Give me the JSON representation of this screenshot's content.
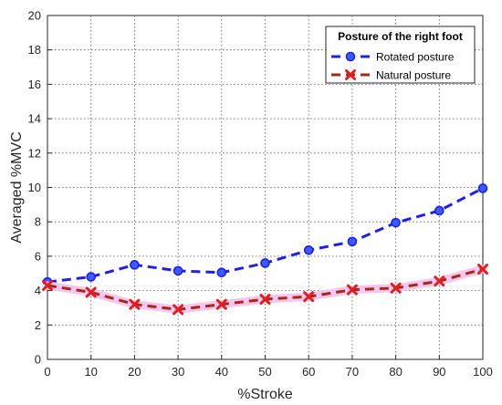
{
  "chart_data": {
    "type": "line",
    "x": [
      0,
      10,
      20,
      30,
      40,
      50,
      60,
      70,
      80,
      90,
      100
    ],
    "series": [
      {
        "name": "Rotated posture",
        "values": [
          4.5,
          4.8,
          5.5,
          5.15,
          5.05,
          5.6,
          6.35,
          6.85,
          7.95,
          8.65,
          9.95
        ],
        "color": "#1f1fe6",
        "marker": "circle",
        "line_style": "dashed"
      },
      {
        "name": "Natural posture",
        "values": [
          4.3,
          3.9,
          3.2,
          2.9,
          3.2,
          3.5,
          3.65,
          4.05,
          4.15,
          4.55,
          5.25
        ],
        "color": "#a52a1a",
        "marker": "x",
        "marker_color": "#e02020",
        "line_style": "dashed"
      }
    ],
    "xlabel": "%Stroke",
    "ylabel": "Averaged %MVC",
    "xlim": [
      0,
      100
    ],
    "ylim": [
      0,
      20
    ],
    "xticks": [
      0,
      10,
      20,
      30,
      40,
      50,
      60,
      70,
      80,
      90,
      100
    ],
    "yticks": [
      0,
      2,
      4,
      6,
      8,
      10,
      12,
      14,
      16,
      18,
      20
    ],
    "grid": true,
    "legend": {
      "title": "Posture of the right foot",
      "placement": "top-right"
    }
  }
}
